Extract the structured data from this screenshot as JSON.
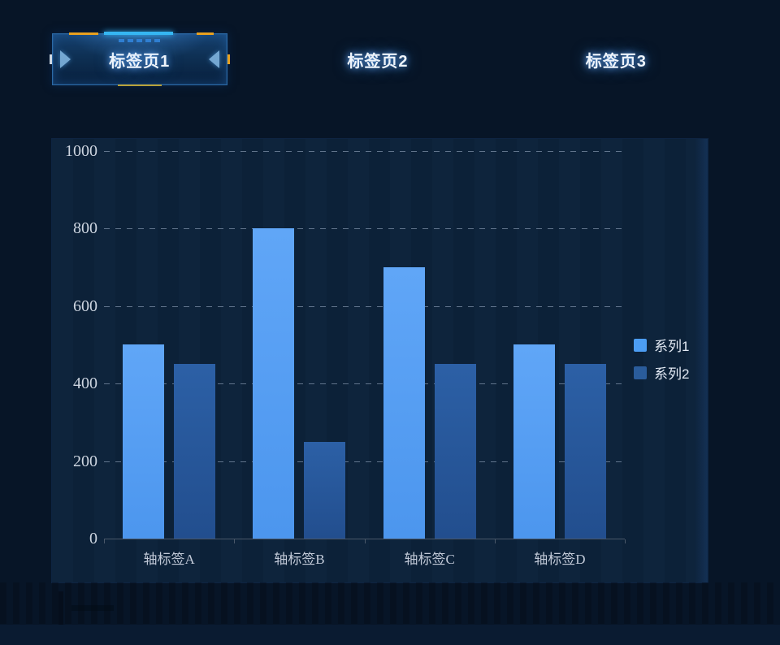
{
  "tabs": [
    {
      "label": "标签页1",
      "active": true
    },
    {
      "label": "标签页2",
      "active": false
    },
    {
      "label": "标签页3",
      "active": false
    }
  ],
  "chart_data": {
    "type": "bar",
    "title": "",
    "categories": [
      "轴标签A",
      "轴标签B",
      "轴标签C",
      "轴标签D"
    ],
    "series": [
      {
        "name": "系列1",
        "values": [
          500,
          800,
          700,
          500
        ],
        "color_top": "#60a6f7",
        "color_bottom": "#4c96ee",
        "legend_color": "#4c9df3"
      },
      {
        "name": "系列2",
        "values": [
          450,
          250,
          450,
          450
        ],
        "color_top": "#2c60a6",
        "color_bottom": "#224e8e",
        "legend_color": "#2a5c9b"
      }
    ],
    "ylim": [
      0,
      1000
    ],
    "yticks": [
      0,
      200,
      400,
      600,
      800,
      1000
    ],
    "grid": "horizontal-dashed",
    "legend_position": "middle-right"
  },
  "theme": {
    "page_bg": "#071527",
    "panel_bg": "#0c2138",
    "accent_yellow": "#e8a11f",
    "accent_cyan": "#35b6f2",
    "tab_border": "#2c6aa6",
    "grid_color": "#a5b6cd",
    "axis_color": "#4a5869",
    "tick_text": "#cdd5e0",
    "label_text": "#c2cad8"
  }
}
